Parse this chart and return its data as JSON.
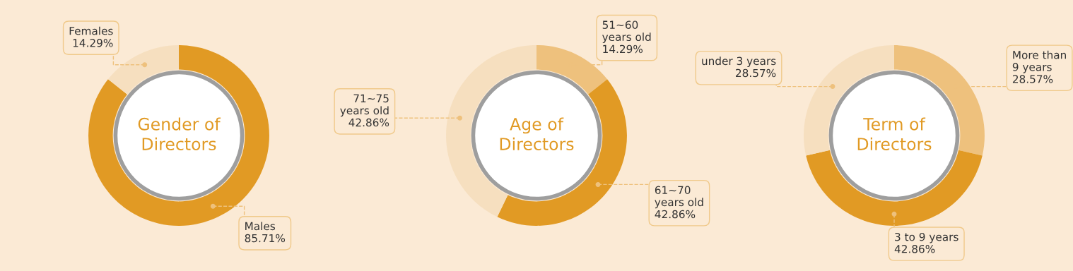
{
  "chart_data": [
    {
      "type": "donut",
      "title": "Gender of\nDirectors",
      "categories": [
        "Males",
        "Females"
      ],
      "values": [
        85.71,
        14.29
      ],
      "value_labels": [
        "85.71%",
        "14.29%"
      ],
      "colors": [
        "#e19a24",
        "#f6dfbf"
      ],
      "data_labels": true
    },
    {
      "type": "donut",
      "title": "Age of\nDirectors",
      "categories": [
        "51~60\nyears old",
        "61~70\nyears old",
        "71~75\nyears old"
      ],
      "values": [
        14.29,
        42.86,
        42.86
      ],
      "value_labels": [
        "14.29%",
        "42.86%",
        "42.86%"
      ],
      "colors": [
        "#eec17d",
        "#e19a24",
        "#f6dfbf"
      ],
      "data_labels": true
    },
    {
      "type": "donut",
      "title": "Term of\nDirectors",
      "categories": [
        "More than\n9 years",
        "3 to 9 years",
        "under 3 years"
      ],
      "values": [
        28.57,
        42.86,
        28.57
      ],
      "value_labels": [
        "28.57%",
        "42.86%",
        "28.57%"
      ],
      "colors": [
        "#eec17d",
        "#e19a24",
        "#f6dfbf"
      ],
      "data_labels": true
    }
  ]
}
